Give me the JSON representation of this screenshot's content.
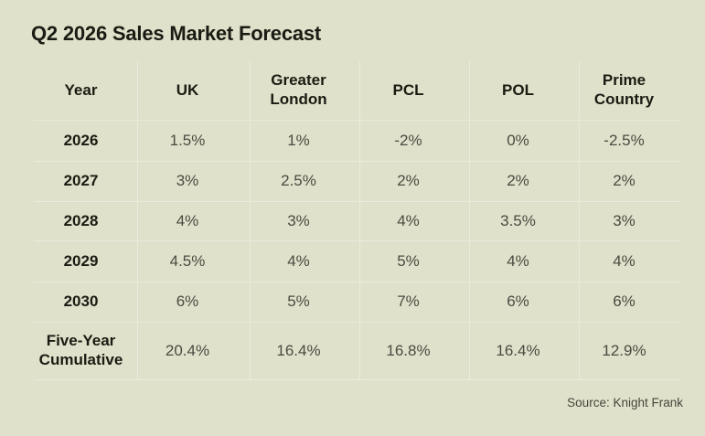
{
  "title": "Q2 2026 Sales Market Forecast",
  "source": "Source: Knight Frank",
  "colors": {
    "background": "#e0e1ca",
    "grid_line": "#e9ebdd",
    "heading_text": "#1a1b12",
    "value_text": "#4a4b42",
    "source_text": "#45463c"
  },
  "chart_data": {
    "type": "table",
    "title": "Q2 2026 Sales Market Forecast",
    "columns": [
      "Year",
      "UK",
      "Greater London",
      "PCL",
      "POL",
      "Prime Country"
    ],
    "rows": [
      {
        "label": "2026",
        "values": [
          "1.5%",
          "1%",
          "-2%",
          "0%",
          "-2.5%"
        ]
      },
      {
        "label": "2027",
        "values": [
          "3%",
          "2.5%",
          "2%",
          "2%",
          "2%"
        ]
      },
      {
        "label": "2028",
        "values": [
          "4%",
          "3%",
          "4%",
          "3.5%",
          "3%"
        ]
      },
      {
        "label": "2029",
        "values": [
          "4.5%",
          "4%",
          "5%",
          "4%",
          "4%"
        ]
      },
      {
        "label": "2030",
        "values": [
          "6%",
          "5%",
          "7%",
          "6%",
          "6%"
        ]
      },
      {
        "label": "Five-Year Cumulative",
        "values": [
          "20.4%",
          "16.4%",
          "16.8%",
          "16.4%",
          "12.9%"
        ]
      }
    ],
    "units": "percent",
    "source": "Source: Knight Frank",
    "layout": {
      "grid": true,
      "header_row": true,
      "label_column": true
    }
  }
}
